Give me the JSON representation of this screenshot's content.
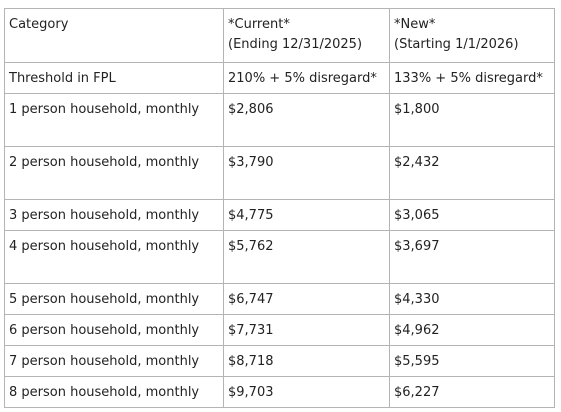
{
  "table": {
    "header": {
      "category": "Category",
      "current_title": "*Current*",
      "current_sub": "(Ending 12/31/2025)",
      "new_title": "*New*",
      "new_sub": "(Starting 1/1/2026)"
    },
    "threshold": {
      "label": "Threshold in FPL",
      "current": "210% + 5% disregard*",
      "new": "133% + 5% disregard*"
    },
    "rows": [
      {
        "label": "1 person household, monthly",
        "current": "$2,806",
        "new": "$1,800"
      },
      {
        "label": "2 person household, monthly",
        "current": "$3,790",
        "new": "$2,432"
      },
      {
        "label": "3 person household, monthly",
        "current": "$4,775",
        "new": "$3,065"
      },
      {
        "label": "4 person household, monthly",
        "current": "$5,762",
        "new": "$3,697"
      },
      {
        "label": "5 person household, monthly",
        "current": "$6,747",
        "new": "$4,330"
      },
      {
        "label": "6 person household, monthly",
        "current": "$7,731",
        "new": "$4,962"
      },
      {
        "label": "7 person household, monthly",
        "current": "$8,718",
        "new": "$5,595"
      },
      {
        "label": "8 person household, monthly",
        "current": "$9,703",
        "new": "$6,227"
      }
    ]
  }
}
